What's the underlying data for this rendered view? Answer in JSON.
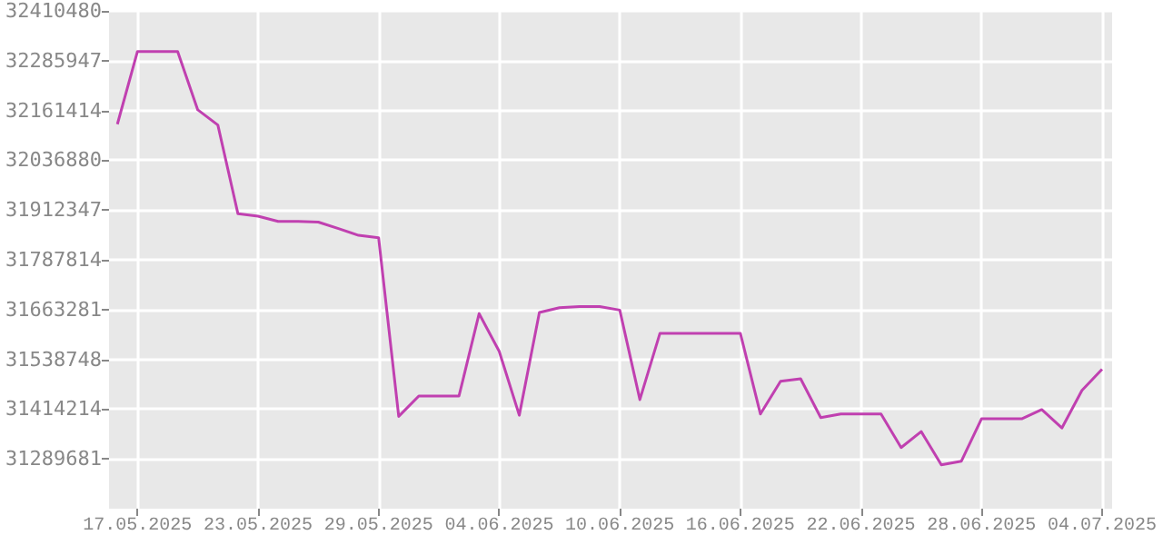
{
  "chart_data": {
    "type": "line",
    "color": "#c040b0",
    "grid": true,
    "marker": "none",
    "line_style": "solid",
    "x": [
      "2025-05-16",
      "2025-05-17",
      "2025-05-18",
      "2025-05-19",
      "2025-05-20",
      "2025-05-21",
      "2025-05-22",
      "2025-05-23",
      "2025-05-24",
      "2025-05-25",
      "2025-05-26",
      "2025-05-27",
      "2025-05-28",
      "2025-05-29",
      "2025-05-30",
      "2025-05-31",
      "2025-06-01",
      "2025-06-02",
      "2025-06-03",
      "2025-06-04",
      "2025-06-05",
      "2025-06-06",
      "2025-06-07",
      "2025-06-08",
      "2025-06-09",
      "2025-06-10",
      "2025-06-11",
      "2025-06-12",
      "2025-06-13",
      "2025-06-14",
      "2025-06-15",
      "2025-06-16",
      "2025-06-17",
      "2025-06-18",
      "2025-06-19",
      "2025-06-20",
      "2025-06-21",
      "2025-06-22",
      "2025-06-23",
      "2025-06-24",
      "2025-06-25",
      "2025-06-26",
      "2025-06-27",
      "2025-06-28",
      "2025-06-29",
      "2025-06-30",
      "2025-07-01",
      "2025-07-02",
      "2025-07-03",
      "2025-07-04"
    ],
    "values": [
      32127000,
      32309000,
      32309000,
      32309000,
      32163000,
      32125000,
      31903000,
      31897000,
      31884000,
      31884000,
      31882000,
      31866000,
      31849000,
      31843000,
      31396000,
      31447000,
      31447000,
      31447000,
      31653000,
      31559000,
      31399000,
      31656000,
      31668000,
      31671000,
      31671000,
      31662000,
      31438000,
      31604000,
      31604000,
      31604000,
      31604000,
      31604000,
      31402000,
      31484000,
      31490000,
      31393000,
      31402000,
      31402000,
      31402000,
      31318000,
      31358000,
      31275000,
      31284000,
      31390000,
      31390000,
      31390000,
      31413000,
      31367000,
      31461000,
      31514000
    ],
    "xlim": [
      "2025-05-15T14:00",
      "2025-07-04T12:00"
    ],
    "xticks": [
      {
        "value": "2025-05-17",
        "label": "17.05.2025"
      },
      {
        "value": "2025-05-23",
        "label": "23.05.2025"
      },
      {
        "value": "2025-05-29",
        "label": "29.05.2025"
      },
      {
        "value": "2025-06-04",
        "label": "04.06.2025"
      },
      {
        "value": "2025-06-10",
        "label": "10.06.2025"
      },
      {
        "value": "2025-06-16",
        "label": "16.06.2025"
      },
      {
        "value": "2025-06-22",
        "label": "22.06.2025"
      },
      {
        "value": "2025-06-28",
        "label": "28.06.2025"
      },
      {
        "value": "2025-07-04",
        "label": "04.07.2025"
      }
    ],
    "ylim": [
      31165148,
      32410480
    ],
    "yticks": [
      31289681,
      31414214,
      31538748,
      31663281,
      31787814,
      31912347,
      32036880,
      32161414,
      32285947,
      32410480
    ]
  }
}
